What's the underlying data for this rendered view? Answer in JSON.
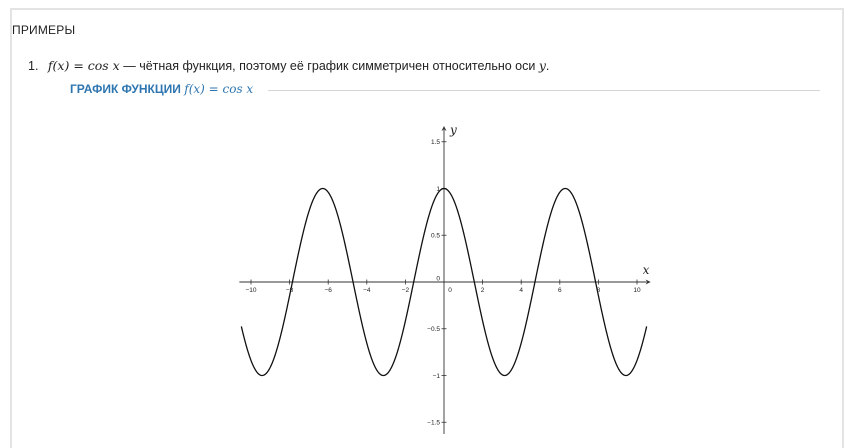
{
  "section": {
    "title": "ПРИМЕРЫ"
  },
  "examples": [
    {
      "number": "1.",
      "formula": "f(x) = cos x",
      "text": "— чётная функция, поэтому её график симметричен относительно оси",
      "axis_symbol": "y",
      "end": ".",
      "figure_caption": "ГРАФИК ФУНКЦИИ",
      "figure_caption_formula": "f(x) = cos x"
    }
  ],
  "chart_data": {
    "type": "line",
    "function": "cos(x)",
    "xlabel": "x",
    "ylabel": "y",
    "xlim": [
      -10.5,
      10.5
    ],
    "ylim": [
      -1.6,
      1.6
    ],
    "x_ticks": [
      -10,
      -8,
      -6,
      -4,
      -2,
      0,
      2,
      4,
      6,
      8,
      10
    ],
    "x_tick_labels": [
      "−10",
      "−8",
      "−6",
      "−4",
      "−2",
      "0",
      "2",
      "4",
      "6",
      "8",
      "10"
    ],
    "y_ticks": [
      1.5,
      1,
      0.5,
      0,
      -0.5,
      -1,
      -1.5
    ],
    "y_tick_labels": [
      "1.5",
      "1",
      "0.5",
      "0",
      "−0.5",
      "−1",
      "−1.5"
    ],
    "grid": false,
    "series": [
      {
        "x": [
          -10.5,
          -9.42,
          -8,
          -6.28,
          -4.71,
          -3.14,
          -1.57,
          0,
          1.57,
          3.14,
          4.71,
          6.28,
          7.85,
          9.42,
          10.5
        ],
        "values": [
          -0.48,
          -1,
          -0.15,
          1,
          0,
          -1,
          0,
          1,
          0,
          -1,
          0,
          1,
          0,
          -1,
          -0.48
        ]
      }
    ]
  }
}
